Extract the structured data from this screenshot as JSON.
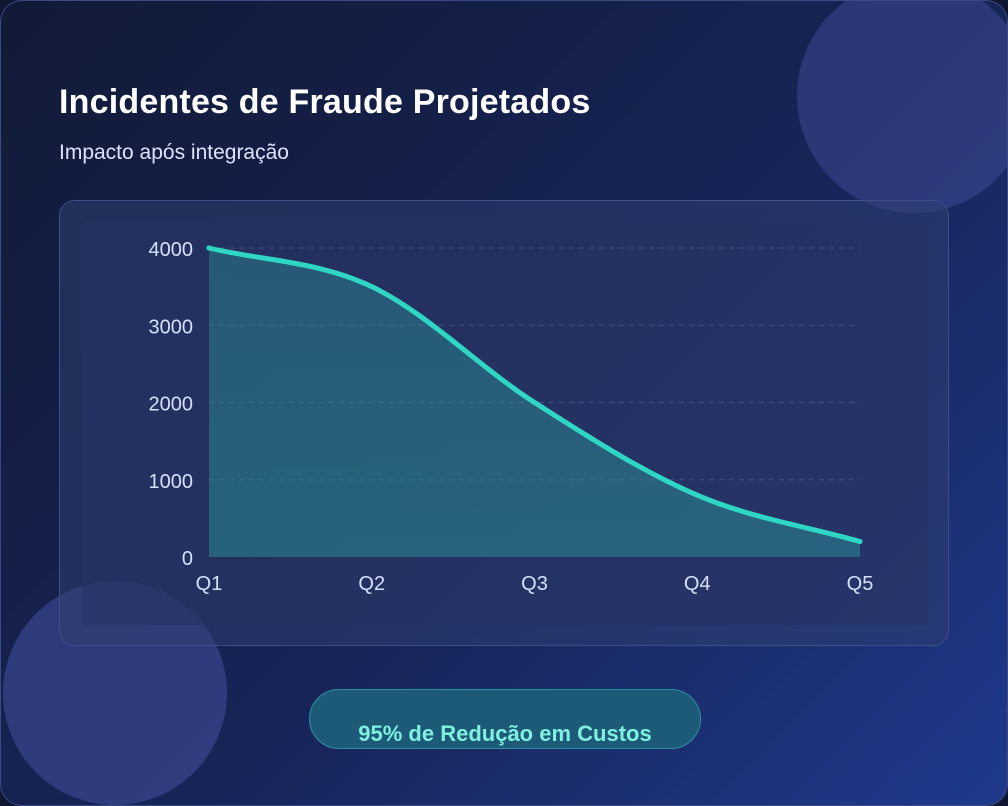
{
  "header": {
    "title": "Incidentes de Fraude Projetados",
    "subtitle": "Impacto após integração"
  },
  "badge": {
    "label": "95% de Redução em Custos"
  },
  "colors": {
    "line": "#2fd6c4",
    "area": "#2a8a94",
    "grid": "#4a5a8e",
    "accent_text": "#7ff0e0"
  },
  "chart_data": {
    "type": "area",
    "title": "Incidentes de Fraude Projetados",
    "subtitle": "Impacto após integração",
    "xlabel": "",
    "ylabel": "",
    "categories": [
      "Q1",
      "Q2",
      "Q3",
      "Q4",
      "Q5"
    ],
    "series": [
      {
        "values": [
          4000,
          3500,
          2000,
          800,
          200
        ]
      }
    ],
    "ylim": [
      0,
      4000
    ],
    "yticks": [
      0,
      1000,
      2000,
      3000,
      4000
    ],
    "grid": true,
    "smooth": true,
    "legend": "none"
  }
}
